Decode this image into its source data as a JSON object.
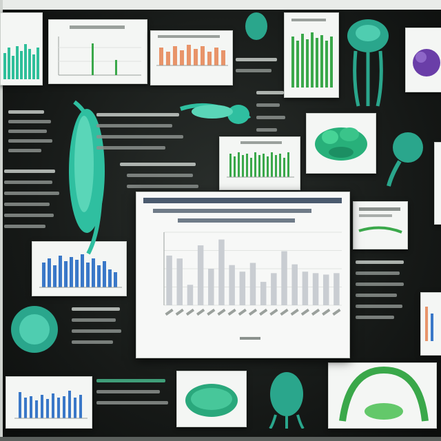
{
  "board": {
    "background_color": "#171a18",
    "accent_teal": "#2fbfa0",
    "accent_green": "#3aa84a",
    "accent_blue": "#3a78c8",
    "accent_orange": "#e8946a"
  },
  "main_chart": {
    "title": "",
    "series_color": "#c9cdd2",
    "bar_count": 17
  },
  "icons": [
    "jellyfish-illustration-icon",
    "fish-larva-illustration-icon",
    "kelp-illustration-icon",
    "coral-illustration-icon",
    "squid-illustration-icon",
    "sponge-illustration-icon",
    "seaweed-illustration-icon",
    "arch-illustration-icon"
  ]
}
